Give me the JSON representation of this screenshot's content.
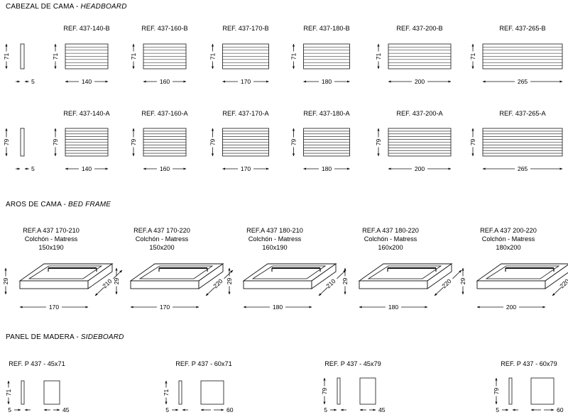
{
  "sections": {
    "headboard": {
      "title": "CABEZAL DE CAMA",
      "sep": " - ",
      "subtitle": "HEADBOARD"
    },
    "bedframe": {
      "title": "AROS DE CAMA",
      "sep": " - ",
      "subtitle": "BED FRAME"
    },
    "sideboard": {
      "title": "PANEL DE MADERA",
      "sep": " - ",
      "subtitle": "SIDEBOARD"
    }
  },
  "headboard": {
    "rows": [
      {
        "height": "71",
        "side_thickness": "5",
        "items": [
          {
            "ref": "REF. 437-140-B",
            "width": "140"
          },
          {
            "ref": "REF. 437-160-B",
            "width": "160"
          },
          {
            "ref": "REF. 437-170-B",
            "width": "170"
          },
          {
            "ref": "REF. 437-180-B",
            "width": "180"
          },
          {
            "ref": "REF. 437-200-B",
            "width": "200"
          },
          {
            "ref": "REF. 437-265-B",
            "width": "265"
          }
        ]
      },
      {
        "height": "79",
        "side_thickness": "5",
        "items": [
          {
            "ref": "REF. 437-140-A",
            "width": "140"
          },
          {
            "ref": "REF. 437-160-A",
            "width": "160"
          },
          {
            "ref": "REF. 437-170-A",
            "width": "170"
          },
          {
            "ref": "REF. 437-180-A",
            "width": "180"
          },
          {
            "ref": "REF. 437-200-A",
            "width": "200"
          },
          {
            "ref": "REF. 437-265-A",
            "width": "265"
          }
        ]
      }
    ]
  },
  "bedframes": [
    {
      "ref": "REF.A 437 170-210",
      "line2": "Colchón - Matress",
      "line3": "150x190",
      "height": "29",
      "width": "170",
      "depth": "210"
    },
    {
      "ref": "REF.A 437 170-220",
      "line2": "Colchón - Matress",
      "line3": "150x200",
      "height": "29",
      "width": "170",
      "depth": "220"
    },
    {
      "ref": "REF.A 437 180-210",
      "line2": "Colchón - Matress",
      "line3": "160x190",
      "height": "29",
      "width": "180",
      "depth": "210"
    },
    {
      "ref": "REF.A 437 180-220",
      "line2": "Colchón - Matress",
      "line3": "160x200",
      "height": "29",
      "width": "180",
      "depth": "220"
    },
    {
      "ref": "REF.A 437 200-220",
      "line2": "Colchón - Matress",
      "line3": "180x200",
      "height": "29",
      "width": "200",
      "depth": "220"
    }
  ],
  "sideboards": [
    {
      "ref": "REF. P 437 - 45x71",
      "height": "71",
      "thickness": "5",
      "width": "45"
    },
    {
      "ref": "REF. P 437 - 60x71",
      "height": "71",
      "thickness": "5",
      "width": "60"
    },
    {
      "ref": "REF. P 437 - 45x79",
      "height": "79",
      "thickness": "5",
      "width": "45"
    },
    {
      "ref": "REF. P 437 - 60x79",
      "height": "79",
      "thickness": "5",
      "width": "60"
    }
  ]
}
